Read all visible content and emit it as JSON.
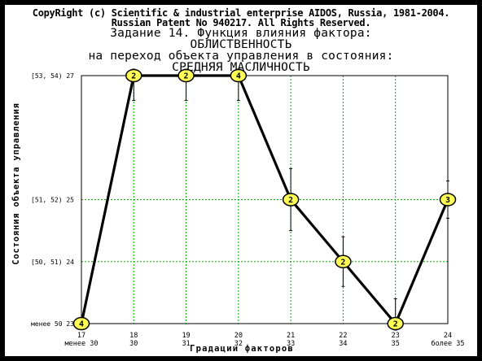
{
  "header": {
    "copyright": "CopyRight (c) Scientific & industrial enterprise AIDOS, Russia, 1981-2004.",
    "patent": "Russian Patent No 940217. All Rights Reserved.",
    "task_line": "Задание 14. Функция влияния фактора:",
    "factor": "ОБЛИСТВЕННОСТЬ",
    "transition_line": "на переход объекта управления в состояния:",
    "state": "СРЕДНЯЯ МАСЛИЧНОСТЬ"
  },
  "chart_data": {
    "type": "line",
    "xlabel": "Градации факторов",
    "ylabel": "Состояния объекта управления",
    "x_categories": [
      {
        "num": "17",
        "range": "менее 30"
      },
      {
        "num": "18",
        "range": "30"
      },
      {
        "num": "19",
        "range": "31"
      },
      {
        "num": "20",
        "range": "32"
      },
      {
        "num": "21",
        "range": "33"
      },
      {
        "num": "22",
        "range": "34"
      },
      {
        "num": "23",
        "range": "35"
      },
      {
        "num": "24",
        "range": "более 35"
      }
    ],
    "y_ticks": [
      {
        "code": 23,
        "label": "менее 50 23"
      },
      {
        "code": 24,
        "label": "[50, 51) 24"
      },
      {
        "code": 25,
        "label": "[51, 52) 25"
      },
      {
        "code": 27,
        "label": "[53, 54) 27"
      }
    ],
    "ylim": [
      23,
      27
    ],
    "grid": true,
    "series": [
      {
        "values": [
          23,
          27,
          27,
          27,
          25,
          24,
          23,
          25
        ],
        "point_labels": [
          "4",
          "2",
          "2",
          "4",
          "2",
          "2",
          "2",
          "3"
        ],
        "error_bars": [
          0,
          0.4,
          0.4,
          0.4,
          0.5,
          0.4,
          0.4,
          0.3
        ]
      }
    ],
    "colors": {
      "line": "#000000",
      "marker_fill": "#ffff55",
      "grid": "#00aa00"
    }
  }
}
